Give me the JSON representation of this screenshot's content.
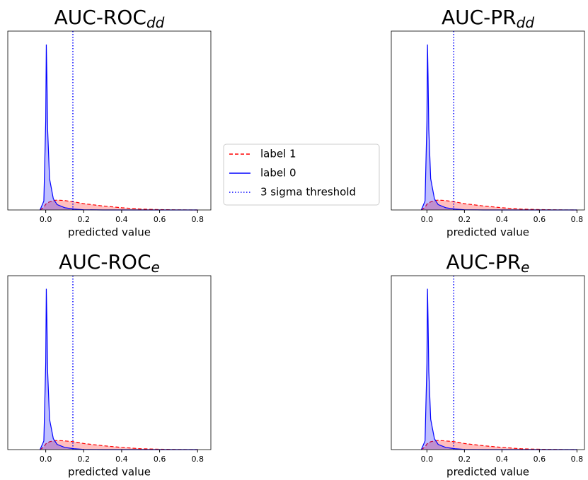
{
  "chart_data": [
    {
      "type": "density",
      "title": "AUC-ROC",
      "title_subscript": "dd",
      "xlabel": "predicted value",
      "xlim": [
        -0.2,
        0.87
      ],
      "xticks": [
        {
          "value": 0,
          "label": "0.0"
        },
        0.2,
        0.4,
        0.6,
        0.8
      ],
      "ylim": [
        0,
        40
      ],
      "x": [
        -0.03,
        -0.01,
        0,
        0.003,
        0.006,
        0.01,
        0.02,
        0.04,
        0.06,
        0.1,
        0.15,
        0.2,
        0.3,
        0.4,
        0.5,
        0.6,
        0.7,
        0.8
      ],
      "series": [
        {
          "name": "label 1",
          "color": "#ff0000",
          "values": [
            0,
            0.6,
            1.3,
            1.4,
            1.5,
            1.6,
            1.8,
            2.1,
            2.2,
            2.1,
            1.8,
            1.4,
            0.9,
            0.5,
            0.2,
            0.08,
            0.02,
            0
          ]
        },
        {
          "name": "label 0",
          "color": "#0000ff",
          "values": [
            0,
            2,
            20,
            37,
            30,
            18,
            7,
            2.5,
            1.2,
            0.5,
            0.2,
            0.05,
            0,
            0,
            0,
            0,
            0,
            0
          ]
        }
      ],
      "threshold": {
        "name": "3 sigma threshold",
        "value": 0.143,
        "color": "#0000ff"
      }
    },
    {
      "type": "density",
      "title": "AUC-PR",
      "title_subscript": "dd",
      "xlabel": "predicted value",
      "xlim": [
        -0.19,
        0.84
      ],
      "xticks": [
        {
          "value": 0,
          "label": "0.0"
        },
        0.2,
        0.4,
        0.6,
        0.8
      ],
      "ylim": [
        0,
        40
      ],
      "x": [
        -0.03,
        -0.01,
        0,
        0.003,
        0.006,
        0.01,
        0.02,
        0.04,
        0.06,
        0.1,
        0.15,
        0.2,
        0.3,
        0.4,
        0.5,
        0.6,
        0.7,
        0.8
      ],
      "series": [
        {
          "color": "#ff0000",
          "values": [
            0,
            0.6,
            1.3,
            1.4,
            1.5,
            1.6,
            1.8,
            2.1,
            2.2,
            2.1,
            1.8,
            1.4,
            0.9,
            0.5,
            0.2,
            0.08,
            0.02,
            0
          ]
        },
        {
          "color": "#0000ff",
          "values": [
            0,
            2,
            20,
            37,
            30,
            18,
            7,
            2.5,
            1.2,
            0.5,
            0.2,
            0.05,
            0,
            0,
            0,
            0,
            0,
            0
          ]
        }
      ],
      "threshold": {
        "value": 0.143,
        "color": "#0000ff"
      }
    },
    {
      "type": "density",
      "title": "AUC-ROC",
      "title_subscript": "e",
      "xlabel": "predicted value",
      "xlim": [
        -0.2,
        0.87
      ],
      "xticks": [
        {
          "value": 0,
          "label": "0.0"
        },
        0.2,
        0.4,
        0.6,
        0.8
      ],
      "ylim": [
        0,
        40
      ],
      "x": [
        -0.03,
        -0.01,
        0,
        0.003,
        0.006,
        0.01,
        0.02,
        0.04,
        0.06,
        0.1,
        0.15,
        0.2,
        0.3,
        0.4,
        0.5,
        0.6,
        0.7,
        0.8
      ],
      "series": [
        {
          "color": "#ff0000",
          "values": [
            0,
            0.6,
            1.3,
            1.4,
            1.5,
            1.6,
            1.8,
            2.0,
            2.1,
            2.0,
            1.8,
            1.4,
            0.9,
            0.5,
            0.2,
            0.08,
            0.02,
            0
          ]
        },
        {
          "color": "#0000ff",
          "values": [
            0,
            2,
            20,
            37,
            30,
            18,
            7,
            2.5,
            1.2,
            0.5,
            0.2,
            0.05,
            0,
            0,
            0,
            0,
            0,
            0
          ]
        }
      ],
      "threshold": {
        "value": 0.143,
        "color": "#0000ff"
      }
    },
    {
      "type": "density",
      "title": "AUC-PR",
      "title_subscript": "e",
      "xlabel": "predicted value",
      "xlim": [
        -0.19,
        0.84
      ],
      "xticks": [
        {
          "value": 0,
          "label": "0.0"
        },
        0.2,
        0.4,
        0.6,
        0.8
      ],
      "ylim": [
        0,
        40
      ],
      "x": [
        -0.03,
        -0.01,
        0,
        0.003,
        0.006,
        0.01,
        0.02,
        0.04,
        0.06,
        0.1,
        0.15,
        0.2,
        0.3,
        0.4,
        0.5,
        0.6,
        0.7,
        0.8
      ],
      "series": [
        {
          "color": "#ff0000",
          "values": [
            0,
            0.6,
            1.3,
            1.4,
            1.5,
            1.6,
            1.8,
            2.0,
            2.1,
            2.0,
            1.8,
            1.4,
            0.9,
            0.5,
            0.2,
            0.08,
            0.02,
            0
          ]
        },
        {
          "color": "#0000ff",
          "values": [
            0,
            2,
            20,
            37,
            30,
            18,
            7,
            2.5,
            1.2,
            0.5,
            0.2,
            0.05,
            0,
            0,
            0,
            0,
            0,
            0
          ]
        }
      ],
      "threshold": {
        "value": 0.143,
        "color": "#0000ff"
      }
    }
  ]
}
